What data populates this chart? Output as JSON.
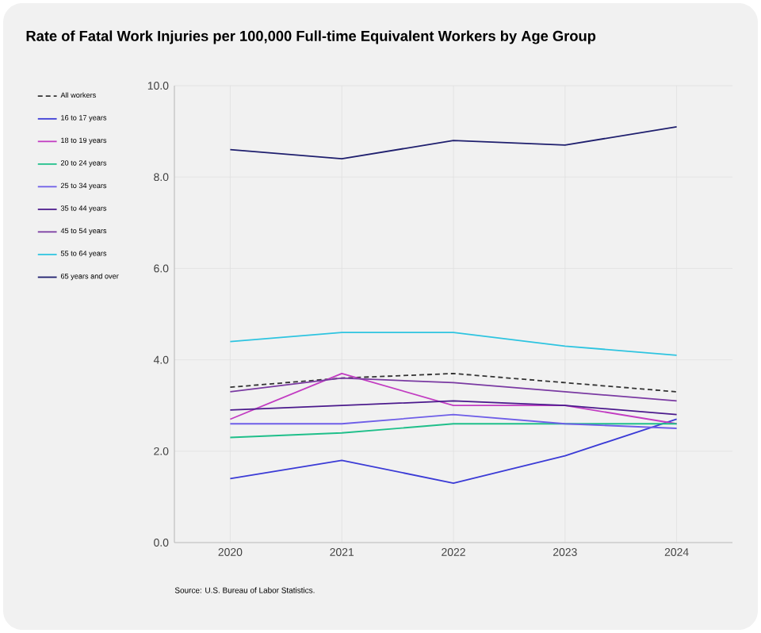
{
  "chart_data": {
    "type": "line",
    "title": "Rate of Fatal Work Injuries per 100,000 Full-time Equivalent Workers by Age Group",
    "x": [
      2020,
      2021,
      2022,
      2023,
      2024
    ],
    "xlim": [
      2019.5,
      2024.5
    ],
    "xticks": [
      2020,
      2021,
      2022,
      2023,
      2024
    ],
    "ylim": [
      0,
      10
    ],
    "yticks": [
      {
        "value": 0,
        "label": "0.0"
      },
      {
        "value": 2,
        "label": "2.0"
      },
      {
        "value": 4,
        "label": "4.0"
      },
      {
        "value": 6,
        "label": "6.0"
      },
      {
        "value": 8,
        "label": "8.0"
      },
      {
        "value": 10,
        "label": "10.0"
      }
    ],
    "grid": true,
    "legend": "left",
    "marker": "none",
    "series": [
      {
        "name": "All workers",
        "color": "#333333",
        "line_style": "dashed",
        "values": [
          3.4,
          3.6,
          3.7,
          3.5,
          3.3
        ]
      },
      {
        "name": "16 to 17 years",
        "color": "#3b3bd6",
        "values": [
          1.4,
          1.8,
          1.3,
          1.9,
          2.7
        ]
      },
      {
        "name": "18 to 19 years",
        "color": "#c23cc2",
        "values": [
          2.7,
          3.7,
          3.0,
          3.0,
          2.6
        ]
      },
      {
        "name": "20 to 24 years",
        "color": "#1fbf8a",
        "values": [
          2.3,
          2.4,
          2.6,
          2.6,
          2.6
        ]
      },
      {
        "name": "25 to 34 years",
        "color": "#6e5ee8",
        "values": [
          2.6,
          2.6,
          2.8,
          2.6,
          2.5
        ]
      },
      {
        "name": "35 to 44 years",
        "color": "#4b1a8c",
        "values": [
          2.9,
          3.0,
          3.1,
          3.0,
          2.8
        ]
      },
      {
        "name": "45 to 54 years",
        "color": "#7a3aa2",
        "values": [
          3.3,
          3.6,
          3.5,
          3.3,
          3.1
        ]
      },
      {
        "name": "55 to 64 years",
        "color": "#2ec4e0",
        "values": [
          4.4,
          4.6,
          4.6,
          4.3,
          4.1
        ]
      },
      {
        "name": "65 years and over",
        "color": "#1f1f6e",
        "values": [
          8.6,
          8.4,
          8.8,
          8.7,
          9.1
        ]
      }
    ],
    "annotations": [
      "Source: U.S. Bureau of Labor Statistics."
    ]
  }
}
